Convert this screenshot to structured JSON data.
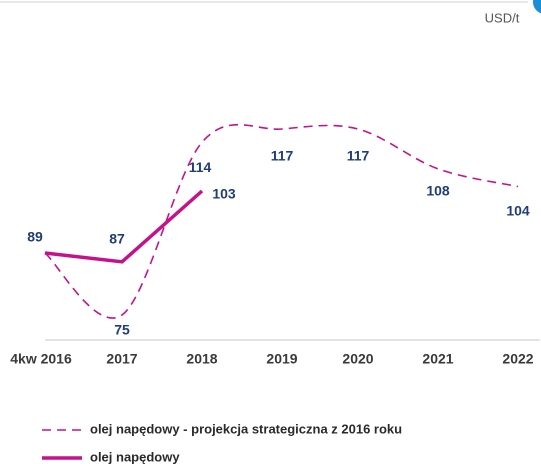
{
  "chart_data": {
    "type": "line",
    "unit": "USD/t",
    "categories": [
      "4kw 2016",
      "2017",
      "2018",
      "2019",
      "2020",
      "2021",
      "2022"
    ],
    "series": [
      {
        "name": "olej napędowy - projekcja strategiczna z 2016 roku",
        "color": "#c4128c",
        "dashed": true,
        "values": [
          89,
          75,
          114,
          117,
          117,
          108,
          104
        ]
      },
      {
        "name": "olej napędowy",
        "color": "#c4128c",
        "dashed": false,
        "values": [
          89,
          87,
          103,
          null,
          null,
          null,
          null
        ]
      }
    ]
  }
}
